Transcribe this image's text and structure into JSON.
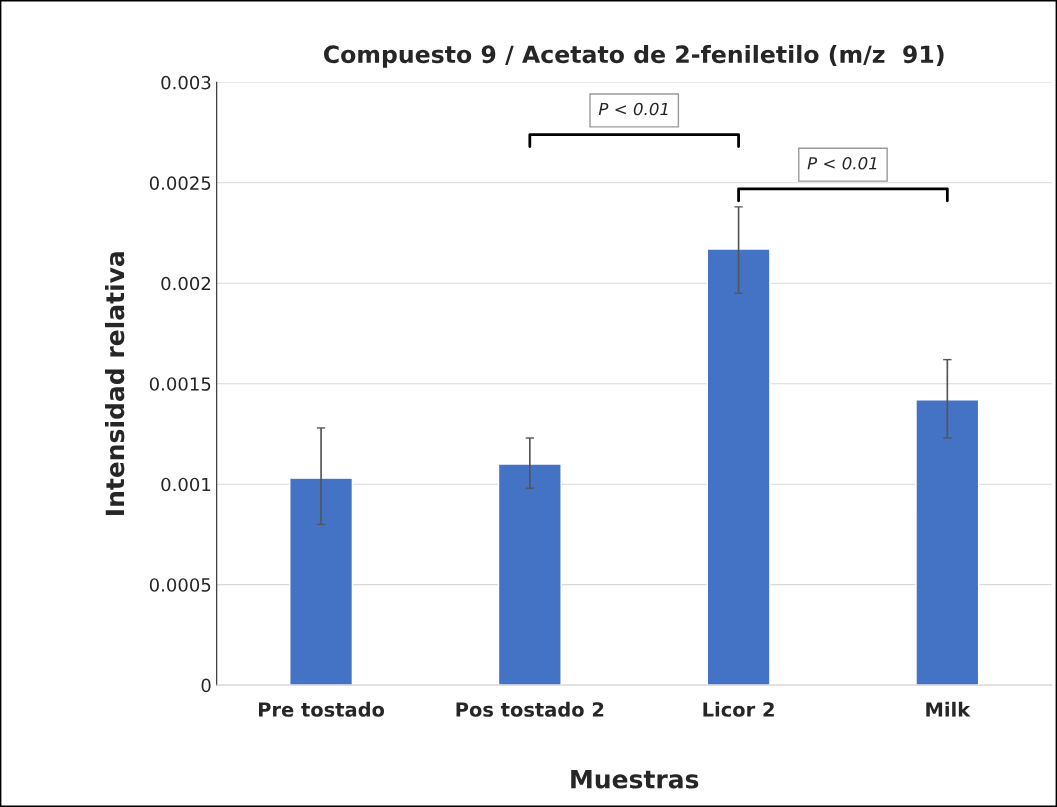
{
  "chart_data": {
    "type": "bar",
    "title": "Compuesto 9 / Acetato de 2-feniletilo (m/z  91)",
    "xlabel": "Muestras",
    "ylabel": "Intensidad relativa",
    "categories": [
      "Pre tostado",
      "Pos tostado 2",
      "Licor 2",
      "Milk"
    ],
    "values": [
      0.00103,
      0.0011,
      0.00217,
      0.00142
    ],
    "errors": [
      [
        0.0008,
        0.00128
      ],
      [
        0.00098,
        0.00123
      ],
      [
        0.00195,
        0.00238
      ],
      [
        0.00123,
        0.00162
      ]
    ],
    "color": "#4472c4",
    "ylim": [
      0,
      0.003
    ],
    "yticks": [
      0,
      0.0005,
      0.001,
      0.0015,
      0.002,
      0.0025,
      0.003
    ],
    "grid": "y",
    "annotations": [
      "P < 0.01",
      "P < 0.01"
    ]
  }
}
